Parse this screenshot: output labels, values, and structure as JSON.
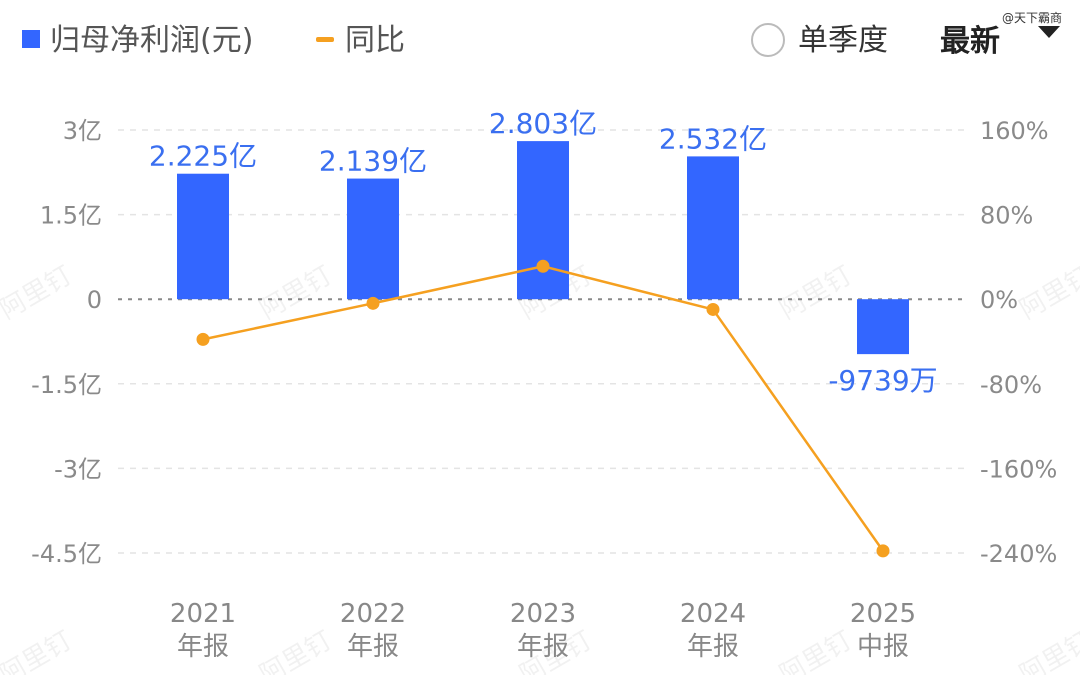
{
  "header": {
    "legend": [
      {
        "label": "归母净利润(元)",
        "color": "#3366FF",
        "symbol": "square"
      },
      {
        "label": "同比",
        "color": "#F5A020",
        "symbol": "line"
      }
    ],
    "quarter_toggle_label": "单季度",
    "latest_label": "最新",
    "credit": "@天下霸商"
  },
  "watermark": "阿里钉",
  "chart_data": {
    "type": "bar",
    "categories": [
      {
        "line1": "2021",
        "line2": "年报"
      },
      {
        "line1": "2022",
        "line2": "年报"
      },
      {
        "line1": "2023",
        "line2": "年报"
      },
      {
        "line1": "2024",
        "line2": "年报"
      },
      {
        "line1": "2025",
        "line2": "中报"
      }
    ],
    "series": [
      {
        "name": "归母净利润(元)",
        "type": "bar",
        "axis": "left",
        "color": "#3366FF",
        "values": [
          222500000,
          213900000,
          280300000,
          253200000,
          -97390000
        ],
        "labels": [
          "2.225亿",
          "2.139亿",
          "2.803亿",
          "2.532亿",
          "-9739万"
        ]
      },
      {
        "name": "同比",
        "type": "line",
        "axis": "right",
        "color": "#F5A020",
        "values": [
          -38,
          -3.9,
          31.1,
          -9.7,
          -238
        ]
      }
    ],
    "y_left": {
      "ticks": [
        300000000,
        150000000,
        0,
        -150000000,
        -300000000,
        -450000000
      ],
      "tick_labels": [
        "3亿",
        "1.5亿",
        "0",
        "-1.5亿",
        "-3亿",
        "-4.5亿"
      ],
      "range": [
        -450000000,
        300000000
      ]
    },
    "y_right": {
      "ticks": [
        160,
        80,
        0,
        -80,
        -160,
        -240
      ],
      "tick_labels": [
        "160%",
        "80%",
        "0%",
        "-80%",
        "-160%",
        "-240%"
      ],
      "range": [
        -240,
        160
      ]
    },
    "grid": true,
    "legend_position": "top-left"
  }
}
